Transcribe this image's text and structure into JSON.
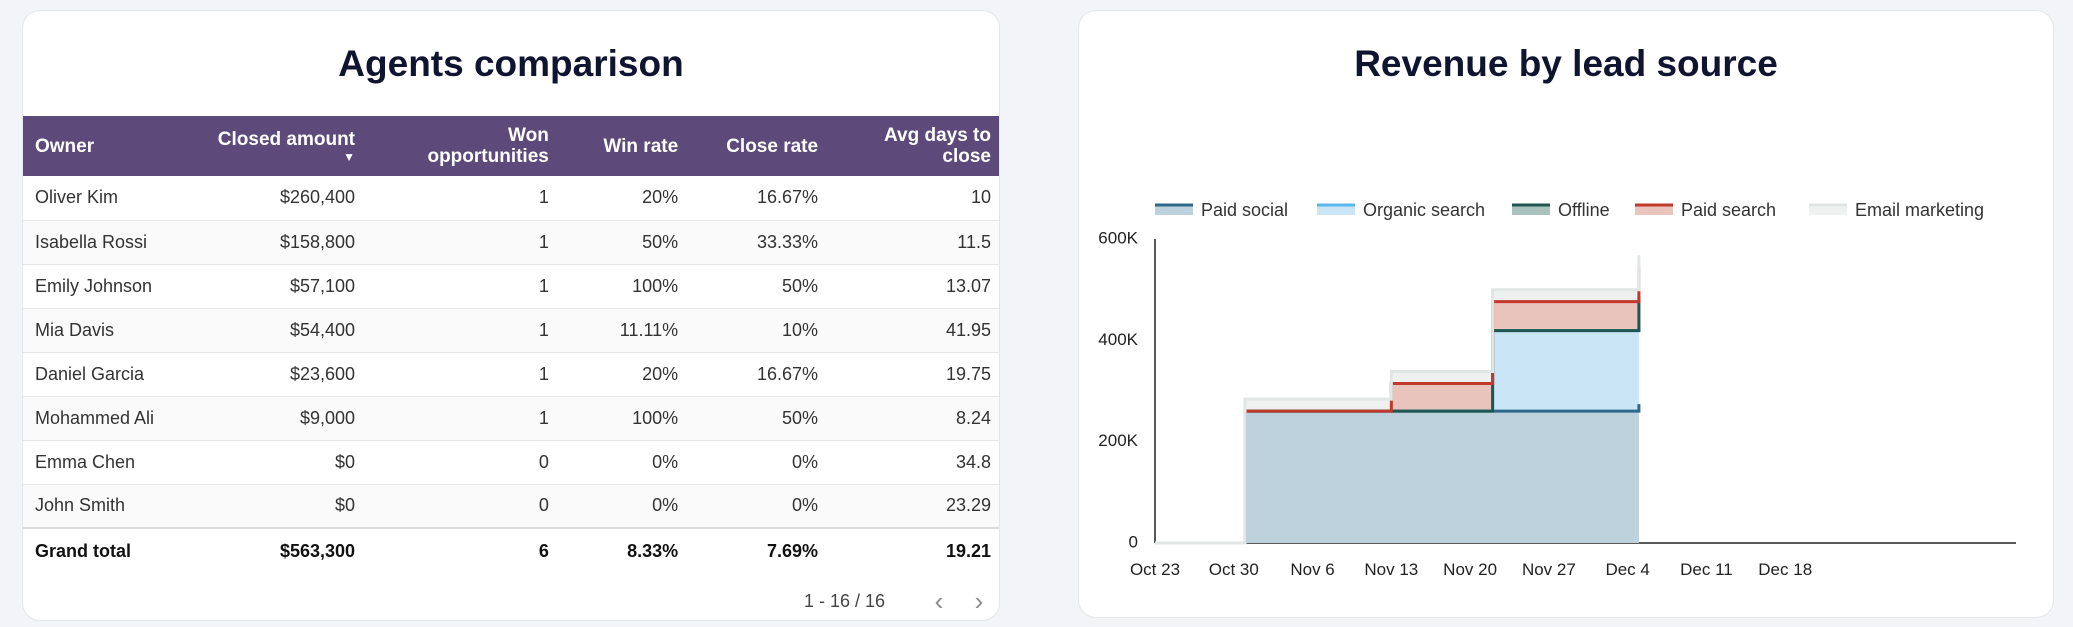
{
  "table_card": {
    "title": "Agents comparison",
    "columns": [
      {
        "label_line1": "Owner",
        "label_line2": "",
        "align": "l"
      },
      {
        "label_line1": "Closed amount",
        "label_line2": "",
        "align": "r",
        "sorted": true
      },
      {
        "label_line1": "Won",
        "label_line2": "opportunities",
        "align": "r"
      },
      {
        "label_line1": "Win rate",
        "label_line2": "",
        "align": "r"
      },
      {
        "label_line1": "Close rate",
        "label_line2": "",
        "align": "r"
      },
      {
        "label_line1": "Avg days to",
        "label_line2": "close",
        "align": "r"
      }
    ],
    "sort_icon": "sort-desc-icon",
    "rows": [
      [
        "Oliver Kim",
        "$260,400",
        "1",
        "20%",
        "16.67%",
        "10"
      ],
      [
        "Isabella Rossi",
        "$158,800",
        "1",
        "50%",
        "33.33%",
        "11.5"
      ],
      [
        "Emily Johnson",
        "$57,100",
        "1",
        "100%",
        "50%",
        "13.07"
      ],
      [
        "Mia Davis",
        "$54,400",
        "1",
        "11.11%",
        "10%",
        "41.95"
      ],
      [
        "Daniel Garcia",
        "$23,600",
        "1",
        "20%",
        "16.67%",
        "19.75"
      ],
      [
        "Mohammed Ali",
        "$9,000",
        "1",
        "100%",
        "50%",
        "8.24"
      ],
      [
        "Emma Chen",
        "$0",
        "0",
        "0%",
        "0%",
        "34.8"
      ],
      [
        "John Smith",
        "$0",
        "0",
        "0%",
        "0%",
        "23.29"
      ]
    ],
    "total": [
      "Grand total",
      "$563,300",
      "6",
      "8.33%",
      "7.69%",
      "19.21"
    ],
    "pager": {
      "range": "1 - 16 / 16",
      "prev_icon": "chevron-left-icon",
      "next_icon": "chevron-right-icon"
    }
  },
  "chart_card": {
    "title": "Revenue by lead source"
  },
  "chart_data": {
    "type": "area",
    "stacked": true,
    "title": "Revenue by lead source",
    "xlabel": "",
    "ylabel": "",
    "x": [
      "Oct 23",
      "Oct 30",
      "Oct 31",
      "Nov 13",
      "Nov 20",
      "Nov 22",
      "Dec 4",
      "Dec 5"
    ],
    "x_ticks": [
      "Oct 23",
      "Oct 30",
      "Nov 6",
      "Nov 13",
      "Nov 20",
      "Nov 27",
      "Dec 4",
      "Dec 11",
      "Dec 18"
    ],
    "x_range": [
      "Oct 23",
      "Dec 25"
    ],
    "y_ticks": [
      "0",
      "200K",
      "400K",
      "600K"
    ],
    "ylim": [
      0,
      600000
    ],
    "legend_position": "top",
    "series": [
      {
        "name": "Paid social",
        "color": "#2d6a8a",
        "fill": "#bdd1dd",
        "values": [
          0,
          0,
          260400,
          260400,
          260400,
          260400,
          260400,
          274000
        ]
      },
      {
        "name": "Organic search",
        "color": "#5bb6ea",
        "fill": "#c9e5f6",
        "values": [
          0,
          0,
          0,
          0,
          0,
          158800,
          158800,
          158800
        ]
      },
      {
        "name": "Offline",
        "color": "#1f5650",
        "fill": "#a9c2bd",
        "values": [
          0,
          0,
          0,
          0,
          0,
          0,
          0,
          54400
        ]
      },
      {
        "name": "Paid search",
        "color": "#c0392b",
        "fill": "#e9c4bd",
        "values": [
          0,
          0,
          0,
          54400,
          54400,
          57100,
          57100,
          57100
        ]
      },
      {
        "name": "Email marketing",
        "color": "#e1e6e4",
        "fill": "#eef1f0",
        "values": [
          0,
          0,
          23600,
          23600,
          23600,
          23600,
          23600,
          23600
        ]
      }
    ],
    "grid": false
  }
}
